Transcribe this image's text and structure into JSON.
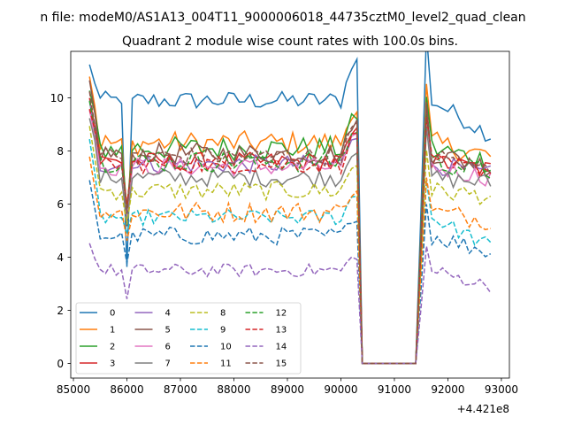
{
  "figure": {
    "suptitle": "n file: modeM0/AS1A13_004T11_9000006018_44735cztM0_level2_quad_clean",
    "title": "Quadrant 2 module wise count rates with 100.0s bins.",
    "x_offset_label": "+4.421e8"
  },
  "chart_data": {
    "type": "line",
    "title": "Quadrant 2 module wise count rates with 100.0s bins.",
    "xlabel": "",
    "ylabel": "",
    "x_offset": 442100000,
    "xlim": [
      84950,
      93150
    ],
    "ylim": [
      -0.55,
      11.75
    ],
    "xticks": [
      85000,
      86000,
      87000,
      88000,
      89000,
      90000,
      91000,
      92000,
      93000
    ],
    "yticks": [
      0,
      2,
      4,
      6,
      8,
      10
    ],
    "grid": false,
    "legend": {
      "placement": "lower-left",
      "columns": 4
    },
    "series": [
      {
        "name": "0",
        "color": "#1f77b4",
        "style": "solid",
        "level": 9.9,
        "start": 11.2,
        "end": 8.6,
        "dip": 3.5,
        "noise": 0.35
      },
      {
        "name": "1",
        "color": "#ff7f0e",
        "style": "solid",
        "level": 8.3,
        "start": 10.9,
        "end": 7.8,
        "dip": 5.5,
        "noise": 0.45
      },
      {
        "name": "2",
        "color": "#2ca02c",
        "style": "solid",
        "level": 8.1,
        "start": 10.2,
        "end": 7.6,
        "dip": 5.8,
        "noise": 0.45
      },
      {
        "name": "3",
        "color": "#d62728",
        "style": "solid",
        "level": 7.6,
        "start": 10.0,
        "end": 7.3,
        "dip": 5.9,
        "noise": 0.35
      },
      {
        "name": "4",
        "color": "#9467bd",
        "style": "solid",
        "level": 7.5,
        "start": 9.8,
        "end": 7.1,
        "dip": 5.6,
        "noise": 0.35
      },
      {
        "name": "5",
        "color": "#8c564b",
        "style": "solid",
        "level": 7.9,
        "start": 10.6,
        "end": 7.4,
        "dip": 5.0,
        "noise": 0.4
      },
      {
        "name": "6",
        "color": "#e377c2",
        "style": "solid",
        "level": 7.4,
        "start": 9.6,
        "end": 7.0,
        "dip": 5.5,
        "noise": 0.35
      },
      {
        "name": "7",
        "color": "#7f7f7f",
        "style": "solid",
        "level": 7.0,
        "start": 9.3,
        "end": 6.8,
        "dip": 5.4,
        "noise": 0.35
      },
      {
        "name": "8",
        "color": "#bcbd22",
        "style": "dashed",
        "level": 6.5,
        "start": 8.9,
        "end": 6.3,
        "dip": 5.3,
        "noise": 0.35
      },
      {
        "name": "9",
        "color": "#17becf",
        "style": "dashed",
        "level": 5.5,
        "start": 8.3,
        "end": 4.4,
        "dip": 4.8,
        "noise": 0.3
      },
      {
        "name": "10",
        "color": "#1f77b4",
        "style": "dashed",
        "level": 4.8,
        "start": 6.8,
        "end": 4.2,
        "dip": 3.9,
        "noise": 0.35
      },
      {
        "name": "11",
        "color": "#ff7f0e",
        "style": "dashed",
        "level": 5.7,
        "start": 7.7,
        "end": 5.4,
        "dip": 4.6,
        "noise": 0.4
      },
      {
        "name": "12",
        "color": "#2ca02c",
        "style": "dashed",
        "level": 7.6,
        "start": 9.9,
        "end": 7.2,
        "dip": 5.8,
        "noise": 0.4
      },
      {
        "name": "13",
        "color": "#d62728",
        "style": "dashed",
        "level": 7.5,
        "start": 9.7,
        "end": 7.3,
        "dip": 6.0,
        "noise": 0.35
      },
      {
        "name": "14",
        "color": "#9467bd",
        "style": "dashed",
        "level": 3.5,
        "start": 4.5,
        "end": 2.9,
        "dip": 2.4,
        "noise": 0.25
      },
      {
        "name": "15",
        "color": "#8c564b",
        "style": "dashed",
        "level": 7.8,
        "start": 10.2,
        "end": 7.3,
        "dip": 5.7,
        "noise": 0.35
      }
    ],
    "x_range": [
      85300,
      92800
    ],
    "gap": [
      90400,
      91400
    ]
  }
}
